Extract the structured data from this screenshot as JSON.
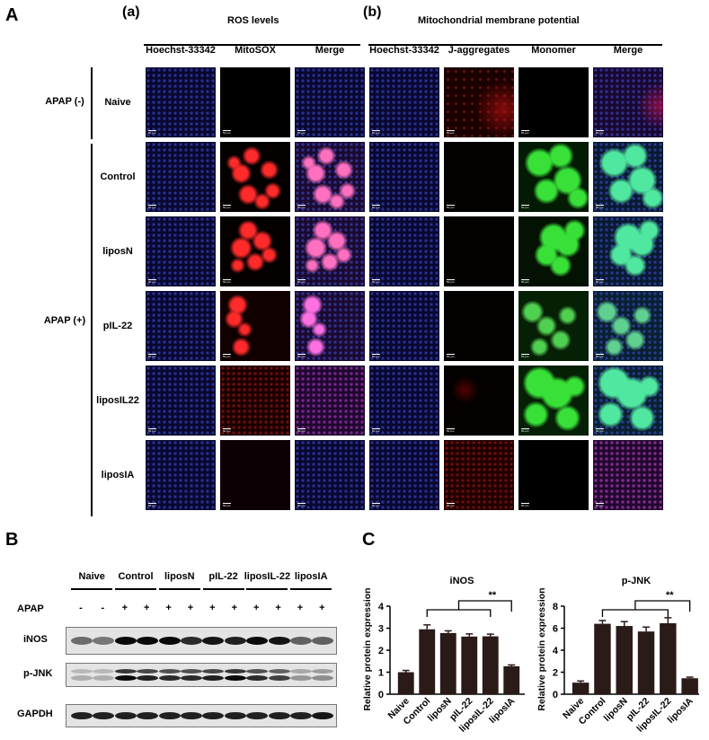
{
  "panel_a": {
    "letter": "A",
    "section_a": {
      "label": "(a)",
      "title": "ROS levels"
    },
    "section_b": {
      "label": "(b)",
      "title": "Mitochondrial membrane potential"
    },
    "columns": [
      "Hoechst-33342",
      "MitoSOX",
      "Merge",
      "Hoechst-33342",
      "J-aggregates",
      "Monomer",
      "Merge"
    ],
    "groups": [
      {
        "label": "APAP (-)"
      },
      {
        "label": "APAP (+)"
      }
    ],
    "rows": [
      "Naive",
      "Control",
      "liposN",
      "pIL-22",
      "liposIL22",
      "liposIA"
    ],
    "scale_bar": "50 μm"
  },
  "panel_b": {
    "letter": "B",
    "groups": [
      "Naive",
      "Control",
      "liposN",
      "pIL-22",
      "liposIL-22",
      "liposIA"
    ],
    "apap_label": "APAP",
    "apap_lanes": [
      "-",
      "-",
      "+",
      "+",
      "+",
      "+",
      "+",
      "+",
      "+",
      "+",
      "+",
      "+"
    ],
    "blots": [
      "iNOS",
      "p-JNK",
      "GAPDH"
    ]
  },
  "panel_c": {
    "letter": "C"
  },
  "chart_data": [
    {
      "type": "bar",
      "title": "iNOS",
      "ylabel": "Relative protein expression",
      "categories": [
        "Naive",
        "Control",
        "liposN",
        "pIL-22",
        "liposIL-22",
        "liposIA"
      ],
      "values": [
        1.0,
        2.95,
        2.78,
        2.62,
        2.63,
        1.27
      ],
      "errors": [
        0.08,
        0.2,
        0.1,
        0.12,
        0.1,
        0.06
      ],
      "ylim": [
        0,
        4
      ],
      "yticks": [
        "0",
        "1",
        "2",
        "3",
        "4"
      ],
      "significance": "**",
      "bar_color": "#2a1a18"
    },
    {
      "type": "bar",
      "title": "p-JNK",
      "ylabel": "Relative protein expression",
      "categories": [
        "Naive",
        "Control",
        "liposN",
        "pIL-22",
        "liposIL-22",
        "liposIA"
      ],
      "values": [
        1.05,
        6.4,
        6.2,
        5.7,
        6.45,
        1.45
      ],
      "errors": [
        0.15,
        0.3,
        0.4,
        0.4,
        0.5,
        0.1
      ],
      "ylim": [
        0,
        8
      ],
      "yticks": [
        "0",
        "2",
        "4",
        "6",
        "8"
      ],
      "significance": "**",
      "bar_color": "#2a1a18"
    }
  ]
}
